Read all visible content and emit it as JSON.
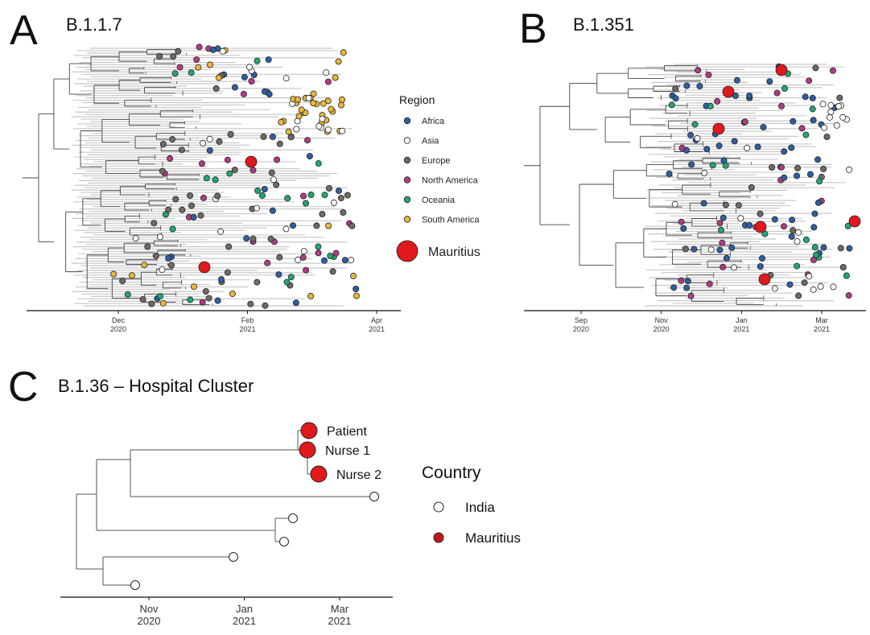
{
  "colors": {
    "Africa": "#2e5fa3",
    "Asia": "#ffffff",
    "Europe": "#6f6a62",
    "North America": "#b23a88",
    "Oceania": "#21a870",
    "South America": "#e9b73b",
    "Mauritius": "#e0191c",
    "branch": "#444444",
    "dense": "#c8c8c8"
  },
  "panels": [
    {
      "letter": "A",
      "title": "B.1.1.7",
      "x_ticks": [
        {
          "label": "Dec",
          "sub": "2020",
          "value": 0
        },
        {
          "label": "Feb",
          "sub": "2021",
          "value": 2
        },
        {
          "label": "Apr",
          "sub": "2021",
          "value": 4
        }
      ]
    },
    {
      "letter": "B",
      "title": "B.1.351",
      "x_ticks": [
        {
          "label": "Sep",
          "sub": "2020",
          "value": 0
        },
        {
          "label": "Nov",
          "sub": "2020",
          "value": 2
        },
        {
          "label": "Jan",
          "sub": "2021",
          "value": 4
        },
        {
          "label": "Mar",
          "sub": "2021",
          "value": 6
        }
      ]
    },
    {
      "letter": "C",
      "title": "B.1.36 – Hospital Cluster",
      "x_ticks": [
        {
          "label": "Nov",
          "sub": "2020",
          "value": 0
        },
        {
          "label": "Jan",
          "sub": "2021",
          "value": 2
        },
        {
          "label": "Mar",
          "sub": "2021",
          "value": 4
        }
      ]
    }
  ],
  "legend_region": {
    "title": "Region",
    "items": [
      "Africa",
      "Asia",
      "Europe",
      "North America",
      "Oceania",
      "South America"
    ],
    "big_item": "Mauritius"
  },
  "legend_country": {
    "title": "Country",
    "items": [
      {
        "label": "India",
        "color": "#ffffff"
      },
      {
        "label": "Mauritius",
        "color": "#c4161c"
      }
    ]
  },
  "hospital_labels": [
    "Patient",
    "Nurse 1",
    "Nurse 2"
  ]
}
